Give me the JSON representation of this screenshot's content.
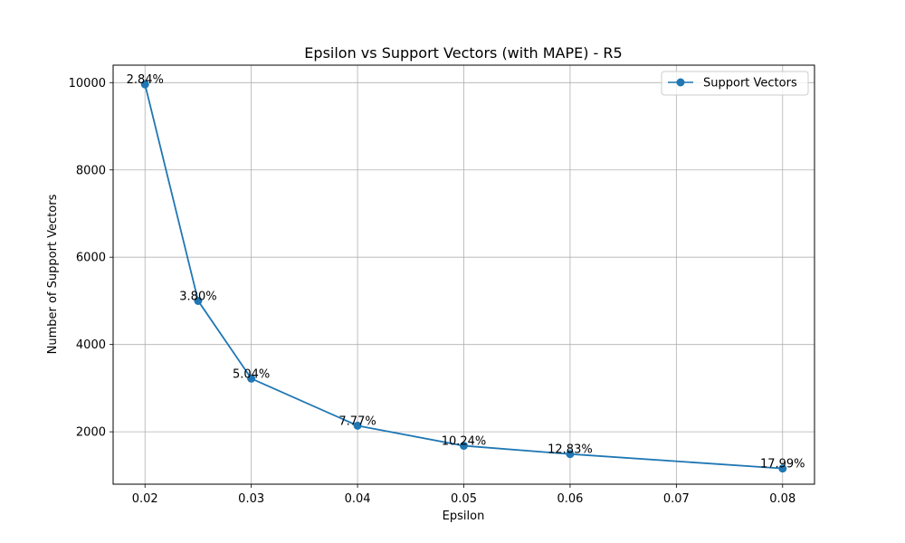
{
  "chart_data": {
    "type": "line",
    "title": "Epsilon vs Support Vectors (with MAPE) - R5",
    "xlabel": "Epsilon",
    "ylabel": "Number of Support Vectors",
    "xlim": [
      0.017,
      0.083
    ],
    "ylim": [
      800,
      10400
    ],
    "xticks": [
      0.02,
      0.03,
      0.04,
      0.05,
      0.06,
      0.07,
      0.08
    ],
    "xtick_labels": [
      "0.02",
      "0.03",
      "0.04",
      "0.05",
      "0.06",
      "0.07",
      "0.08"
    ],
    "yticks": [
      2000,
      4000,
      6000,
      8000,
      10000
    ],
    "ytick_labels": [
      "2000",
      "4000",
      "6000",
      "8000",
      "10000"
    ],
    "grid": true,
    "legend_position": "top-right",
    "series": [
      {
        "name": "Support Vectors",
        "color": "#1f77b4",
        "marker": "circle",
        "x": [
          0.02,
          0.025,
          0.03,
          0.04,
          0.05,
          0.06,
          0.08
        ],
        "y": [
          9960,
          5000,
          3220,
          2140,
          1680,
          1490,
          1160
        ],
        "annotations": [
          "2.84%",
          "3.80%",
          "5.04%",
          "7.77%",
          "10.24%",
          "12.83%",
          "17.99%"
        ]
      }
    ]
  }
}
